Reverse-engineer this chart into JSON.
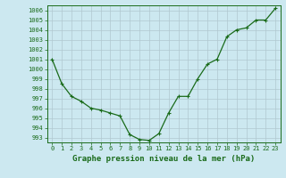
{
  "x": [
    0,
    1,
    2,
    3,
    4,
    5,
    6,
    7,
    8,
    9,
    10,
    11,
    12,
    13,
    14,
    15,
    16,
    17,
    18,
    19,
    20,
    21,
    22,
    23
  ],
  "y": [
    1001,
    998.5,
    997.2,
    996.7,
    996.0,
    995.8,
    995.5,
    995.2,
    993.3,
    992.8,
    992.7,
    993.4,
    995.5,
    997.2,
    997.2,
    999.0,
    1000.5,
    1001.0,
    1003.3,
    1004.0,
    1004.2,
    1005.0,
    1005.0,
    1006.2
  ],
  "line_color": "#1a6b1a",
  "marker": "+",
  "marker_color": "#1a6b1a",
  "bg_color": "#cce8f0",
  "grid_color": "#b0c8d0",
  "axis_color": "#1a6b1a",
  "xlabel": "Graphe pression niveau de la mer (hPa)",
  "xlabel_color": "#1a6b1a",
  "ylim": [
    992.5,
    1006.5
  ],
  "xlim": [
    -0.5,
    23.5
  ],
  "yticks": [
    993,
    994,
    995,
    996,
    997,
    998,
    999,
    1000,
    1001,
    1002,
    1003,
    1004,
    1005,
    1006
  ],
  "xticks": [
    0,
    1,
    2,
    3,
    4,
    5,
    6,
    7,
    8,
    9,
    10,
    11,
    12,
    13,
    14,
    15,
    16,
    17,
    18,
    19,
    20,
    21,
    22,
    23
  ],
  "tick_fontsize": 5.0,
  "label_fontsize": 6.5,
  "linewidth": 0.9,
  "markersize": 3.5
}
